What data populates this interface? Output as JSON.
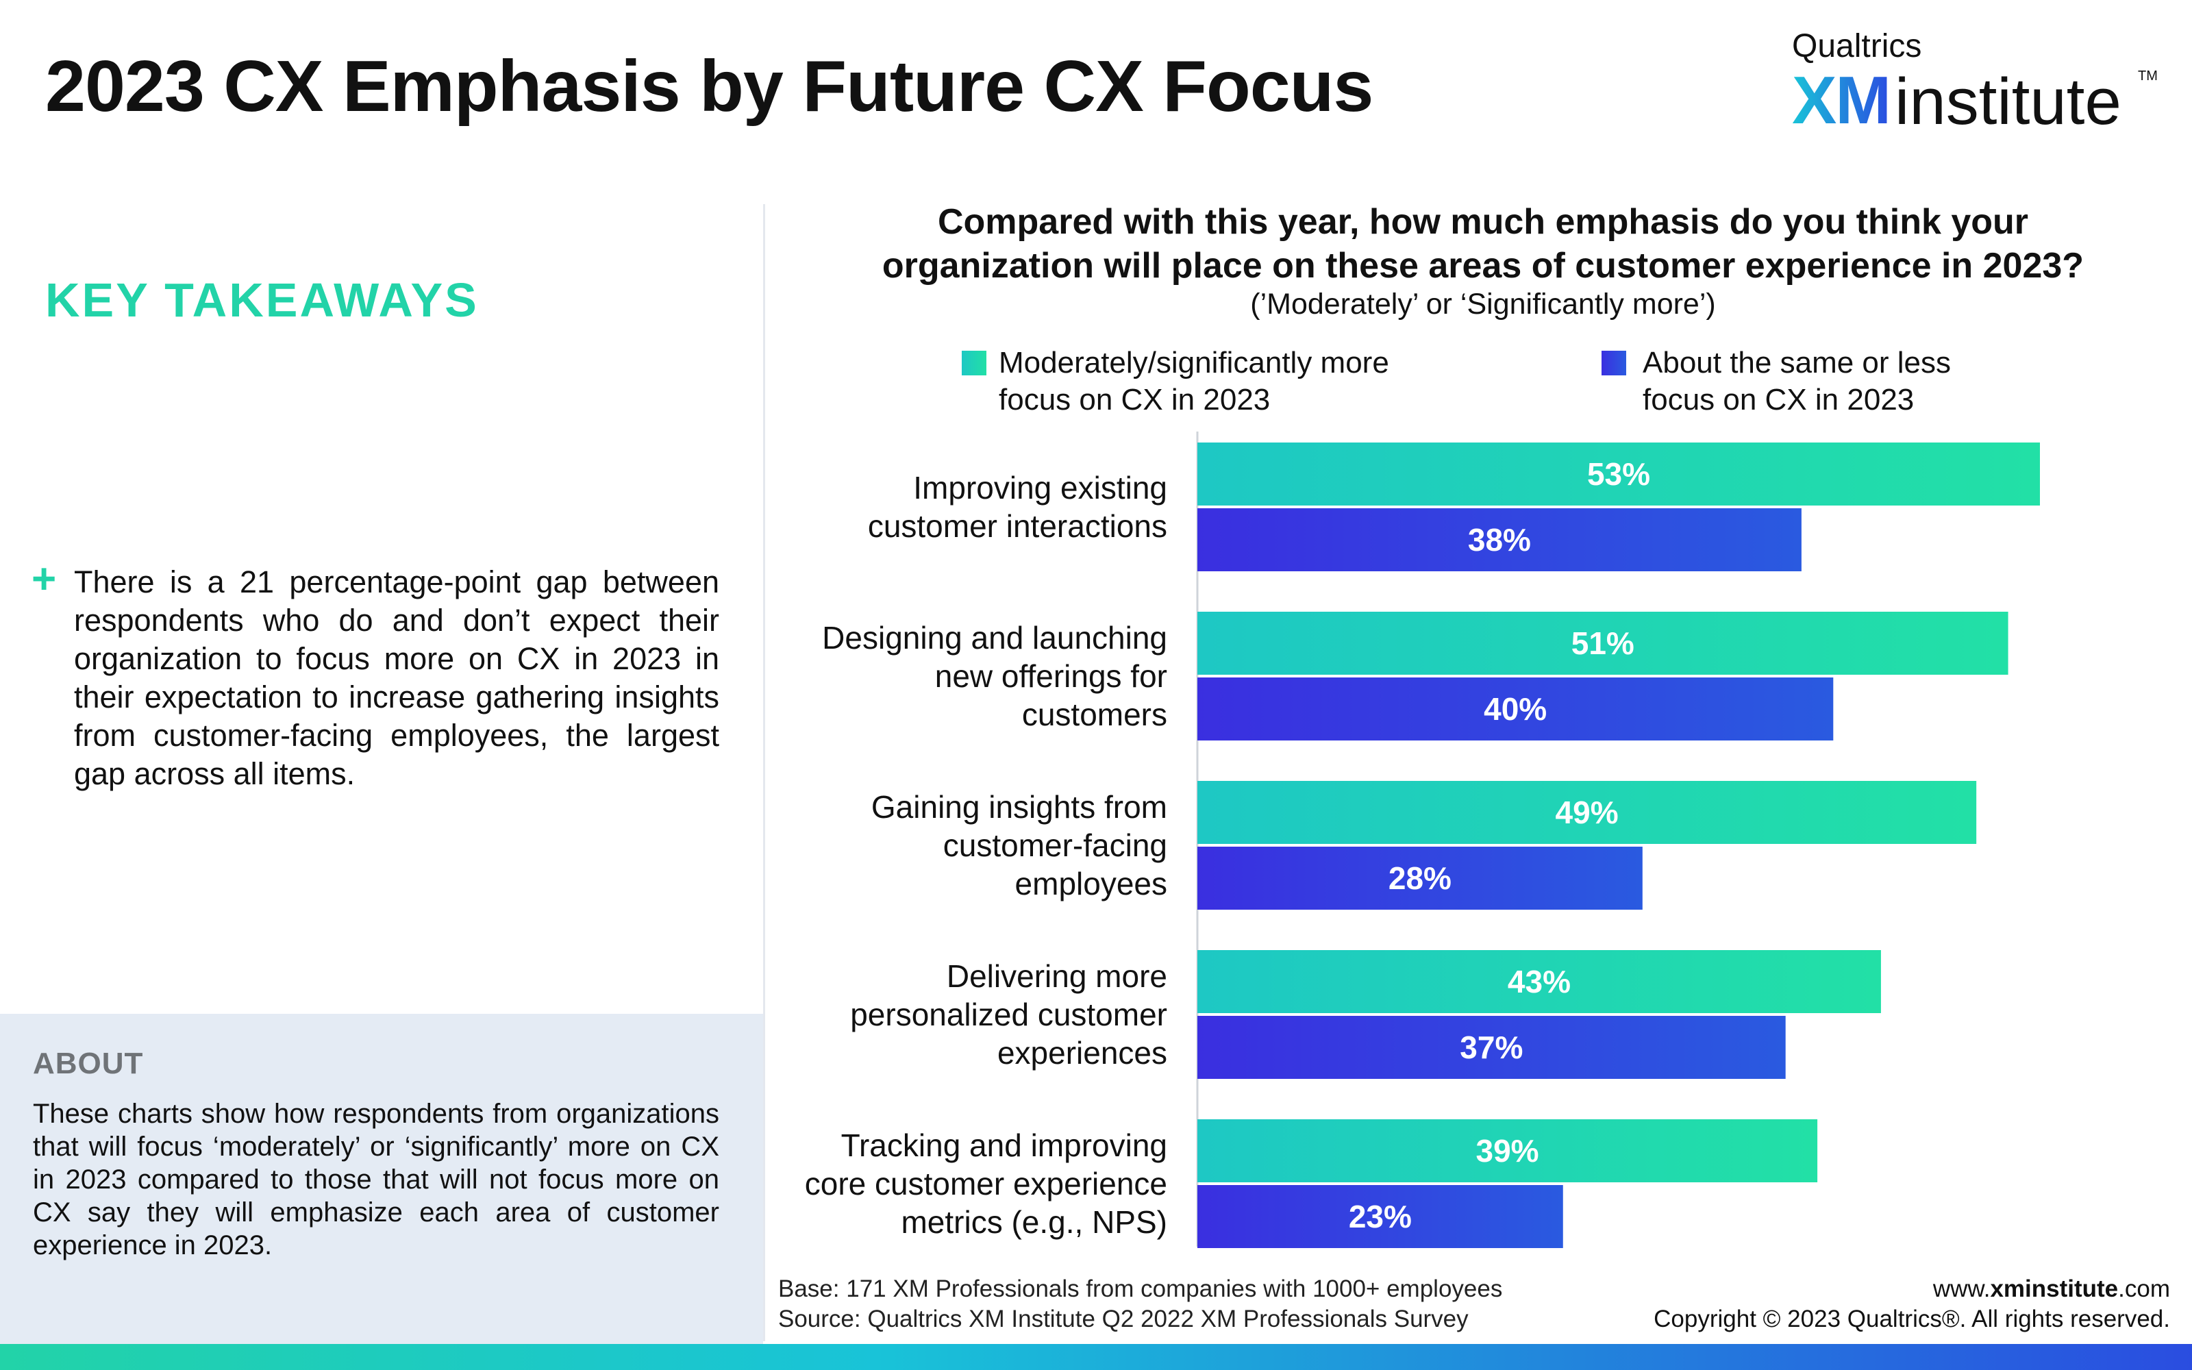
{
  "header": {
    "title": "2023 CX Emphasis by Future CX Focus",
    "logo": {
      "top": "Qualtrics",
      "xm": "XM",
      "institute": "institute",
      "tm": "TM"
    }
  },
  "takeaways": {
    "heading": "KEY TAKEAWAYS",
    "bullet_icon": "plus-icon",
    "items": [
      "There is a 21 percentage-point gap between respondents who do and don’t expect their organization to focus more on CX in 2023 in their expectation to increase gathering insights from customer-facing employees, the largest gap across all items."
    ]
  },
  "about": {
    "heading": "ABOUT",
    "text": "These charts show how respondents from organizations that will focus ‘moderately’ or ‘significantly’ more on CX in 2023 compared to those that will not focus more on CX say they will emphasize each area of customer experience in 2023."
  },
  "colors": {
    "teal_start": "#1ec8c4",
    "teal_end": "#22e0a6",
    "blue_start": "#3a2fe0",
    "blue_end": "#2a5ae0",
    "accent": "#22d3a8"
  },
  "chart_data": {
    "type": "bar",
    "orientation": "horizontal",
    "title_lines": [
      "Compared with this year, how much emphasis do you think your",
      "organization will place on these areas of customer experience in 2023?"
    ],
    "subtitle": "(’Moderately’ or ‘Significantly more’)",
    "legend_placement": "top",
    "categories": [
      [
        "Improving existing",
        "customer interactions"
      ],
      [
        "Designing and launching",
        "new offerings for",
        "customers"
      ],
      [
        "Gaining insights from",
        "customer-facing",
        "employees"
      ],
      [
        "Delivering more",
        "personalized customer",
        "experiences"
      ],
      [
        "Tracking and improving",
        "core customer experience",
        "metrics (e.g., NPS)"
      ]
    ],
    "series": [
      {
        "name_lines": [
          "Moderately/significantly more",
          "focus on CX in 2023"
        ],
        "values": [
          53,
          51,
          49,
          43,
          39
        ],
        "labels": [
          "53%",
          "51%",
          "49%",
          "43%",
          "39%"
        ]
      },
      {
        "name_lines": [
          "About the same or less",
          "focus on CX in 2023"
        ],
        "values": [
          38,
          40,
          28,
          37,
          23
        ],
        "labels": [
          "38%",
          "40%",
          "28%",
          "37%",
          "23%"
        ]
      }
    ],
    "value_unit": "%",
    "xlim": [
      0,
      53
    ],
    "grid": false
  },
  "footer": {
    "base": "Base: 171 XM Professionals from companies with 1000+ employees",
    "source": "Source: Qualtrics XM Institute Q2 2022 XM Professionals Survey",
    "url_prefix": "www.",
    "url_bold": "xminstitute",
    "url_suffix": ".com",
    "copyright": "Copyright © 2023 Qualtrics®. All rights reserved."
  }
}
